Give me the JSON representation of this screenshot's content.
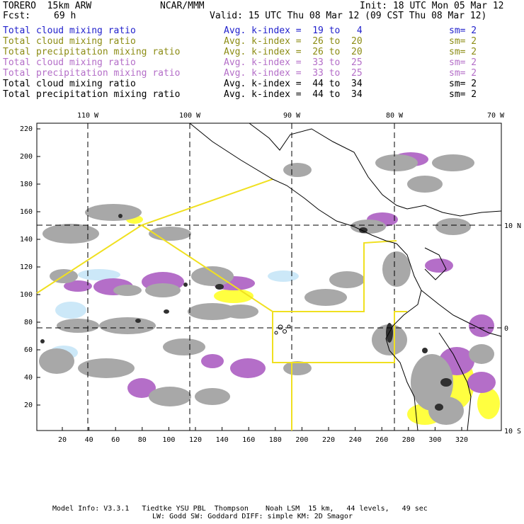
{
  "header": {
    "model": "TORERO  15km ARW",
    "org": "NCAR/MMM",
    "init": "Init: 18 UTC Mon 05 Mar 12",
    "fcst_label": "Fcst:",
    "fcst_value": "69 h",
    "valid": "Valid: 15 UTC Thu 08 Mar 12 (09 CST Thu 08 Mar 12)"
  },
  "legend": [
    {
      "field": "Total cloud mixing ratio",
      "kindex": "Avg. k-index =  19 to   4",
      "sm": "sm= 2",
      "color": "#2222cc"
    },
    {
      "field": "Total cloud mixing ratio",
      "kindex": "Avg. k-index =  26 to  20",
      "sm": "sm= 2",
      "color": "#8c8c14"
    },
    {
      "field": "Total precipitation mixing ratio",
      "kindex": "Avg. k-index =  26 to  20",
      "sm": "sm= 2",
      "color": "#8c8c14"
    },
    {
      "field": "Total cloud mixing ratio",
      "kindex": "Avg. k-index =  33 to  25",
      "sm": "sm= 2",
      "color": "#b46ec8"
    },
    {
      "field": "Total precipitation mixing ratio",
      "kindex": "Avg. k-index =  33 to  25",
      "sm": "sm= 2",
      "color": "#b46ec8"
    },
    {
      "field": "Total cloud mixing ratio",
      "kindex": "Avg. k-index =  44 to  34",
      "sm": "sm= 2",
      "color": "#000000"
    },
    {
      "field": "Total precipitation mixing ratio",
      "kindex": "Avg. k-index =  44 to  34",
      "sm": "sm= 2",
      "color": "#000000"
    }
  ],
  "top_axis": [
    "110 W",
    "100 W",
    "90 W",
    "80 W",
    "70 W"
  ],
  "right_axis": [
    "10 N",
    "0",
    "10 S"
  ],
  "left_axis": [
    "220",
    "200",
    "180",
    "160",
    "140",
    "120",
    "100",
    "80",
    "60",
    "40",
    "20"
  ],
  "bottom_axis": [
    "20",
    "40",
    "60",
    "80",
    "100",
    "120",
    "140",
    "160",
    "180",
    "200",
    "220",
    "240",
    "260",
    "280",
    "300",
    "320"
  ],
  "footer": {
    "line1": "Model Info: V3.3.1   Tiedtke YSU PBL  Thompson    Noah LSM  15 km,   44 levels,   49 sec",
    "line2": "LW: Godd SW: Goddard DIFF: simple KM: 2D Smagor"
  },
  "colors": {
    "gray": "#a8a8a8",
    "purple": "#b46ec8",
    "yellow": "#ffff40",
    "lightblue": "#cce8f8",
    "yellow_line": "#f0e020"
  }
}
